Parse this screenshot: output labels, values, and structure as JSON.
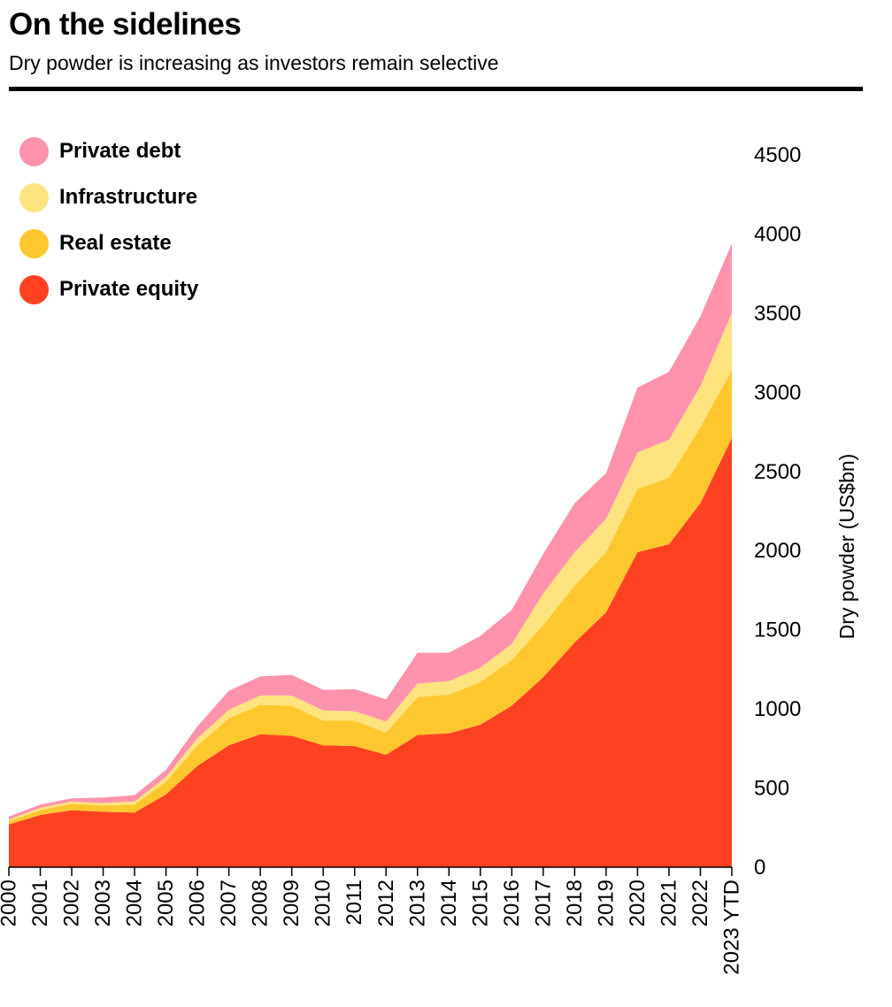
{
  "chart_data": {
    "type": "area",
    "stacked": true,
    "title": "On the sidelines",
    "subtitle": "Dry powder is increasing as investors remain selective",
    "ylabel": "Dry powder (US$bn)",
    "ylim": [
      0,
      4500
    ],
    "yticks": [
      0,
      500,
      1000,
      1500,
      2000,
      2500,
      3000,
      3500,
      4000,
      4500
    ],
    "categories": [
      "2000",
      "2001",
      "2002",
      "2003",
      "2004",
      "2005",
      "2006",
      "2007",
      "2008",
      "2009",
      "2010",
      "2011",
      "2012",
      "2013",
      "2014",
      "2015",
      "2016",
      "2017",
      "2018",
      "2019",
      "2020",
      "2021",
      "2022",
      "2023 YTD"
    ],
    "series": [
      {
        "name": "Private equity",
        "color": "#ff4121",
        "values": [
          270,
          330,
          360,
          350,
          345,
          460,
          640,
          770,
          840,
          830,
          770,
          765,
          710,
          835,
          845,
          900,
          1020,
          1200,
          1420,
          1610,
          1990,
          2040,
          2300,
          2710
        ]
      },
      {
        "name": "Real estate",
        "color": "#ffc72e",
        "values": [
          20,
          30,
          40,
          40,
          50,
          80,
          130,
          170,
          185,
          190,
          155,
          160,
          140,
          240,
          245,
          270,
          290,
          330,
          360,
          380,
          400,
          420,
          480,
          430
        ]
      },
      {
        "name": "Infrastructure",
        "color": "#ffe37f",
        "values": [
          10,
          15,
          15,
          15,
          20,
          30,
          45,
          55,
          60,
          65,
          65,
          60,
          70,
          85,
          85,
          90,
          100,
          200,
          210,
          210,
          230,
          240,
          260,
          360
        ]
      },
      {
        "name": "Private debt",
        "color": "#ff93ad",
        "values": [
          20,
          20,
          20,
          35,
          40,
          45,
          75,
          120,
          120,
          130,
          130,
          140,
          140,
          195,
          180,
          200,
          215,
          250,
          310,
          290,
          410,
          430,
          440,
          440
        ]
      }
    ]
  },
  "legend": [
    {
      "label": "Private debt",
      "color": "#ff93ad"
    },
    {
      "label": "Infrastructure",
      "color": "#ffe37f"
    },
    {
      "label": "Real estate",
      "color": "#ffc72e"
    },
    {
      "label": "Private equity",
      "color": "#ff4121"
    }
  ]
}
